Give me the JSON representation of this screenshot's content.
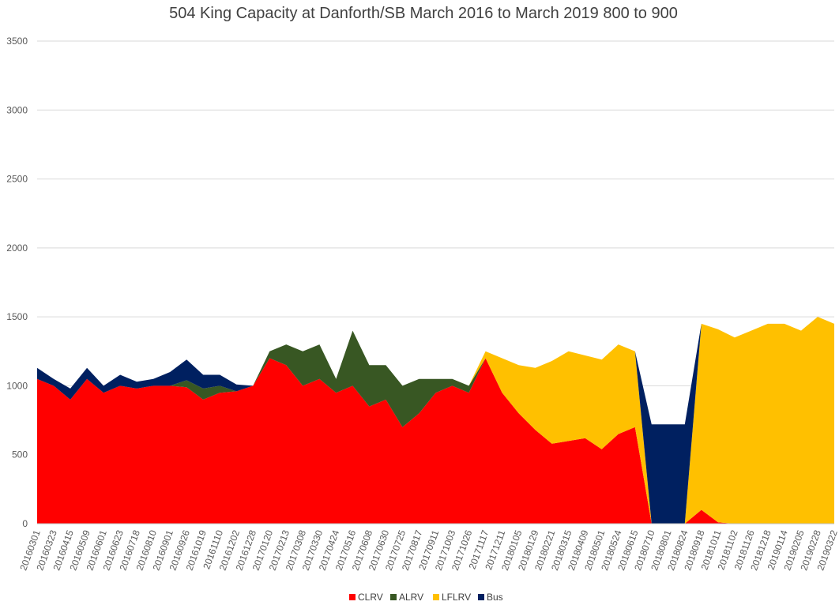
{
  "chart_data": {
    "type": "area",
    "stacked": true,
    "title": "504 King Capacity at Danforth/SB March 2016 to March 2019  800 to 900",
    "xlabel": "",
    "ylabel": "",
    "ylim": [
      0,
      3500
    ],
    "y_ticks": [
      0,
      500,
      1000,
      1500,
      2000,
      2500,
      3000,
      3500
    ],
    "grid": true,
    "legend_position": "bottom",
    "x_tick_labels": [
      "20160301",
      "20160323",
      "20160415",
      "20160509",
      "20160601",
      "20160623",
      "20160718",
      "20160810",
      "20160901",
      "20160926",
      "20161019",
      "20161110",
      "20161202",
      "20161228",
      "20170120",
      "20170213",
      "20170308",
      "20170330",
      "20170424",
      "20170516",
      "20170608",
      "20170630",
      "20170725",
      "20170817",
      "20170911",
      "20171003",
      "20171026",
      "20171117",
      "20171211",
      "20180105",
      "20180129",
      "20180221",
      "20180315",
      "20180409",
      "20180501",
      "20180524",
      "20180615",
      "20180710",
      "20180801",
      "20180824",
      "20180918",
      "20181011",
      "20181102",
      "20181126",
      "20181218",
      "20190114",
      "20190205",
      "20190228",
      "20190322"
    ],
    "series": [
      {
        "name": "CLRV",
        "color": "#FF0000",
        "values": [
          1050,
          1000,
          900,
          1050,
          950,
          1000,
          980,
          1000,
          1000,
          990,
          900,
          950,
          960,
          1000,
          1200,
          1150,
          1000,
          1050,
          950,
          1000,
          850,
          900,
          700,
          800,
          950,
          1000,
          950,
          1200,
          950,
          800,
          680,
          580,
          600,
          620,
          540,
          650,
          700,
          0,
          0,
          0,
          100,
          10,
          0,
          0,
          0,
          0,
          0,
          0,
          0
        ]
      },
      {
        "name": "ALRV",
        "color": "#385723",
        "values": [
          0,
          0,
          0,
          0,
          0,
          0,
          0,
          0,
          0,
          50,
          80,
          50,
          0,
          0,
          50,
          150,
          250,
          250,
          100,
          400,
          300,
          250,
          300,
          250,
          100,
          50,
          50,
          0,
          0,
          0,
          0,
          0,
          0,
          0,
          0,
          0,
          0,
          0,
          0,
          0,
          0,
          0,
          0,
          0,
          0,
          0,
          0,
          0,
          0
        ]
      },
      {
        "name": "LFLRV",
        "color": "#FFC000",
        "values": [
          0,
          0,
          0,
          0,
          0,
          0,
          0,
          0,
          0,
          0,
          0,
          0,
          0,
          0,
          0,
          0,
          0,
          0,
          0,
          0,
          0,
          0,
          0,
          0,
          0,
          0,
          0,
          50,
          250,
          350,
          450,
          600,
          650,
          600,
          650,
          650,
          550,
          0,
          0,
          0,
          1350,
          1400,
          1350,
          1400,
          1450,
          1450,
          1400,
          1500,
          1450
        ]
      },
      {
        "name": "Bus",
        "color": "#002060",
        "values": [
          80,
          50,
          80,
          80,
          50,
          80,
          50,
          50,
          100,
          150,
          100,
          80,
          50,
          0,
          0,
          0,
          0,
          0,
          0,
          0,
          0,
          0,
          0,
          0,
          0,
          0,
          0,
          0,
          0,
          0,
          0,
          0,
          0,
          0,
          0,
          0,
          0,
          720,
          720,
          720,
          0,
          0,
          0,
          0,
          0,
          0,
          0,
          0,
          0
        ]
      }
    ]
  }
}
